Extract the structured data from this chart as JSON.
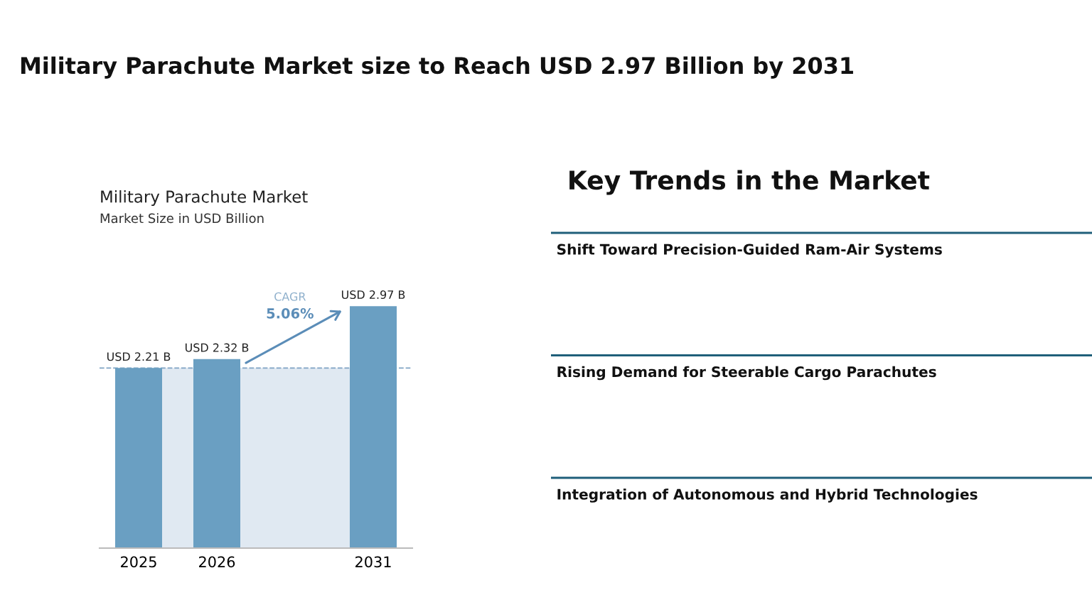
{
  "chart_data": [
    {
      "type": "other",
      "title": "Military Parachute Market size to Reach USD 2.97 Billion by 2031"
    },
    {
      "type": "bar",
      "title": "Military Parachute Market",
      "subtitle": "Market Size in USD Billion",
      "categories": [
        "2025",
        "2026",
        null,
        "2031"
      ],
      "values": [
        2.21,
        2.32,
        null,
        2.97
      ],
      "value_labels": [
        "USD 2.21 B",
        "USD 2.32 B",
        null,
        "USD 2.97 B"
      ],
      "color": "#6a9fc2",
      "tick_labels": "x",
      "grid": false,
      "ref_lines": [
        {
          "axis": "y",
          "value": 2.21,
          "color": "#7fa3c4",
          "line_style": "dashed"
        }
      ],
      "bands": [
        {
          "axis": "y",
          "from": 0,
          "to": 2.21,
          "color": "#e0e9f2"
        }
      ],
      "annotations": [
        "CAGR",
        "5.06%"
      ]
    },
    {
      "type": "other",
      "title": "Key Trends in the Market",
      "annotations": [
        "Shift Toward Precision-Guided Ram-Air Systems",
        "Rising Demand for Steerable Cargo Parachutes",
        "Integration of Autonomous and Hybrid Technologies"
      ]
    }
  ]
}
